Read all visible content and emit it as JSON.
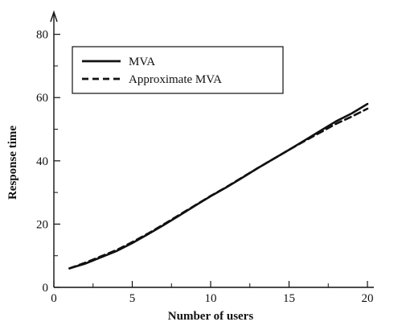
{
  "chart_data": {
    "type": "line",
    "title": "",
    "xlabel": "Number of users",
    "ylabel": "Response time",
    "xlim": [
      0,
      20
    ],
    "ylim": [
      0,
      85
    ],
    "xticks": [
      0,
      5,
      10,
      15,
      20
    ],
    "yticks": [
      0,
      20,
      40,
      60,
      80
    ],
    "grid": false,
    "legend_position": "top-left",
    "series": [
      {
        "name": "MVA",
        "style": "solid",
        "x": [
          1,
          2,
          3,
          4,
          5,
          6,
          7,
          8,
          9,
          10,
          11,
          12,
          13,
          14,
          15,
          16,
          17,
          18,
          19,
          20
        ],
        "y": [
          6,
          7.5,
          9.5,
          11.5,
          14,
          16.8,
          19.7,
          22.7,
          25.8,
          28.8,
          31.6,
          34.6,
          37.7,
          40.6,
          43.5,
          46.5,
          49.5,
          52.5,
          55,
          58
        ]
      },
      {
        "name": "Approximate MVA",
        "style": "dashed",
        "x": [
          1,
          2,
          3,
          4,
          5,
          6,
          7,
          8,
          9,
          10,
          11,
          12,
          13,
          14,
          15,
          16,
          17,
          18,
          19,
          20
        ],
        "y": [
          6,
          7.8,
          9.8,
          11.8,
          14.3,
          17,
          19.9,
          22.9,
          25.9,
          28.9,
          31.7,
          34.7,
          37.7,
          40.6,
          43.5,
          46.3,
          49,
          51.7,
          54,
          56.5
        ]
      }
    ]
  }
}
